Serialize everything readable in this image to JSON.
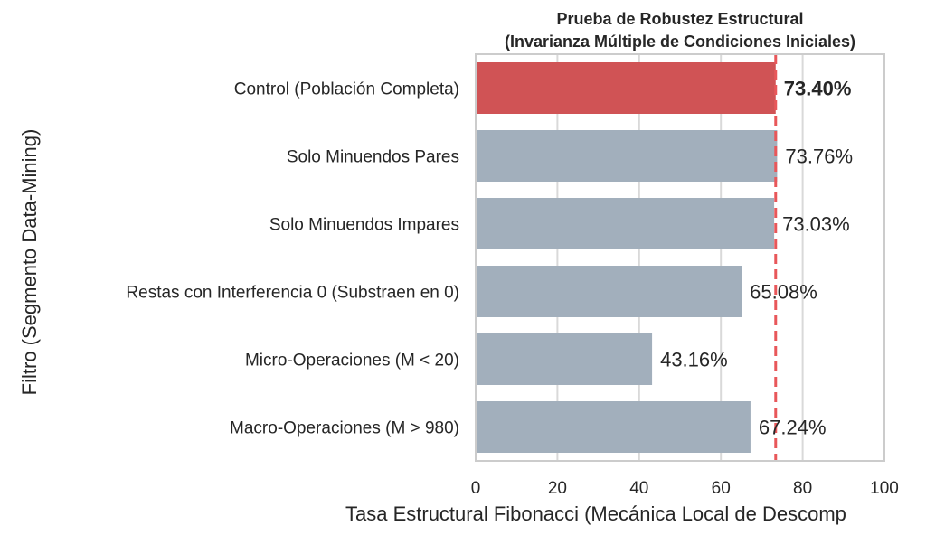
{
  "chart_data": {
    "type": "bar",
    "orientation": "horizontal",
    "title": [
      "Prueba de Robustez Estructural",
      "(Invarianza Múltiple de Condiciones Iniciales)"
    ],
    "xlabel": "Tasa Estructural Fibonacci (Mecánica Local de Descomp",
    "ylabel": "Filtro (Segmento Data-Mining)",
    "xlim": [
      0,
      100
    ],
    "xticks": [
      0,
      20,
      40,
      60,
      80,
      100
    ],
    "grid": true,
    "categories": [
      "Control (Población Completa)",
      "Solo Minuendos Pares",
      "Solo Minuendos Impares",
      "Restas con Interferencia 0 (Substraen en 0)",
      "Micro-Operaciones (M < 20)",
      "Macro-Operaciones (M > 980)"
    ],
    "values": [
      73.4,
      73.76,
      73.03,
      65.08,
      43.16,
      67.24
    ],
    "value_labels": [
      "73.40%",
      "73.76%",
      "73.03%",
      "65.08%",
      "43.16%",
      "67.24%"
    ],
    "highlight_index": 0,
    "reference_line": 73.4,
    "colors": {
      "highlight": "#d05355",
      "bar": "#a2afbc",
      "reference": "#e8575a",
      "grid": "#d9d9d9",
      "frame": "#cccccc",
      "text": "#262626"
    }
  }
}
